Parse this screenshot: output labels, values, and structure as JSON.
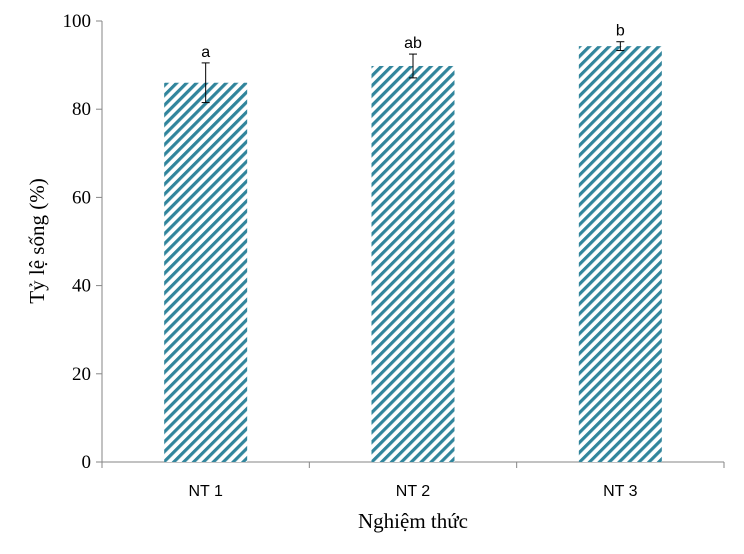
{
  "chart_data": {
    "type": "bar",
    "categories": [
      "NT 1",
      "NT 2",
      "NT 3"
    ],
    "values": [
      86.0,
      89.8,
      94.3
    ],
    "error": [
      4.5,
      2.7,
      1.0
    ],
    "significance_labels": [
      "a",
      "ab",
      "b"
    ],
    "xlabel": "Nghiệm thức",
    "ylabel": "Tỷ lệ sống (%)",
    "ylim": [
      0,
      100
    ],
    "yticks": [
      "0",
      "20",
      "40",
      "60",
      "80",
      "100"
    ],
    "ytick_values": [
      0,
      20,
      40,
      60,
      80,
      100
    ],
    "grid": false,
    "legend": "none",
    "bar_pattern": "diagonal-stripes",
    "bar_color": "#31859C"
  }
}
